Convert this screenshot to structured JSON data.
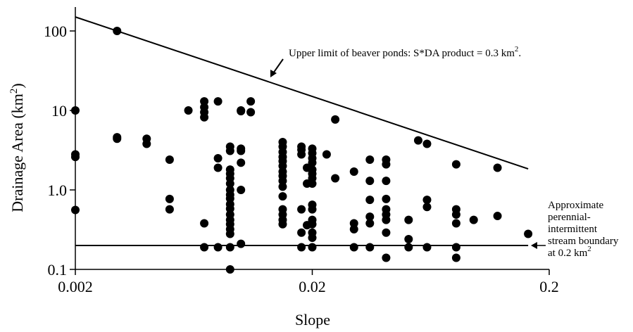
{
  "chart_data": {
    "type": "scatter",
    "log_x": true,
    "log_y": true,
    "x_label": "Slope",
    "y_label": [
      "Drainage Area (km",
      "2",
      ")"
    ],
    "xlim": [
      0.002,
      0.2
    ],
    "xticks": [
      0.002,
      0.02,
      0.2
    ],
    "ylim": [
      0.1,
      200
    ],
    "yticks": [
      0.1,
      {
        "value": 1,
        "label": "1.0"
      },
      10,
      100
    ],
    "series": [
      {
        "color": "#000000",
        "x": [
          0.002,
          0.002,
          0.002,
          0.002,
          0.003,
          0.003,
          0.003,
          0.004,
          0.004,
          0.005,
          0.005,
          0.005,
          0.006,
          0.007,
          0.007,
          0.007,
          0.007,
          0.007,
          0.007,
          0.008,
          0.008,
          0.008,
          0.008,
          0.009,
          0.009,
          0.009,
          0.009,
          0.009,
          0.009,
          0.009,
          0.009,
          0.009,
          0.009,
          0.009,
          0.009,
          0.009,
          0.009,
          0.009,
          0.009,
          0.009,
          0.009,
          0.01,
          0.01,
          0.01,
          0.01,
          0.01,
          0.01,
          0.01,
          0.011,
          0.011,
          0.015,
          0.015,
          0.015,
          0.015,
          0.015,
          0.015,
          0.015,
          0.015,
          0.015,
          0.015,
          0.015,
          0.015,
          0.015,
          0.015,
          0.015,
          0.018,
          0.018,
          0.018,
          0.018,
          0.018,
          0.018,
          0.019,
          0.019,
          0.019,
          0.02,
          0.02,
          0.02,
          0.02,
          0.02,
          0.02,
          0.02,
          0.02,
          0.02,
          0.02,
          0.02,
          0.02,
          0.02,
          0.02,
          0.02,
          0.023,
          0.025,
          0.025,
          0.03,
          0.03,
          0.03,
          0.03,
          0.035,
          0.035,
          0.035,
          0.035,
          0.035,
          0.035,
          0.041,
          0.041,
          0.041,
          0.041,
          0.041,
          0.041,
          0.041,
          0.041,
          0.041,
          0.051,
          0.051,
          0.051,
          0.056,
          0.061,
          0.061,
          0.061,
          0.061,
          0.081,
          0.081,
          0.081,
          0.081,
          0.081,
          0.081,
          0.096,
          0.121,
          0.121,
          0.163
        ],
        "values": [
          10,
          2.8,
          2.6,
          0.56,
          100,
          4.6,
          4.4,
          4.4,
          3.8,
          2.4,
          0.77,
          0.57,
          10,
          13,
          11,
          9.5,
          8.2,
          0.38,
          0.19,
          13,
          2.5,
          1.9,
          0.19,
          3.5,
          3.1,
          1.8,
          1.6,
          1.4,
          1.2,
          1.0,
          0.87,
          0.78,
          0.66,
          0.58,
          0.49,
          0.42,
          0.37,
          0.32,
          0.28,
          0.19,
          0.1,
          10,
          9.8,
          3.3,
          3.1,
          2.2,
          1.0,
          0.21,
          13,
          9.5,
          4.0,
          3.5,
          3.0,
          2.6,
          2.3,
          2.0,
          1.7,
          1.5,
          1.3,
          1.1,
          0.83,
          0.57,
          0.49,
          0.42,
          0.37,
          3.5,
          3.2,
          2.8,
          0.57,
          0.29,
          0.19,
          1.9,
          1.2,
          0.36,
          3.3,
          2.9,
          2.5,
          2.2,
          1.8,
          1.6,
          1.4,
          1.2,
          0.65,
          0.57,
          0.42,
          0.37,
          0.29,
          0.25,
          0.19,
          2.8,
          7.7,
          1.4,
          1.7,
          0.38,
          0.32,
          0.19,
          2.4,
          1.3,
          0.75,
          0.46,
          0.38,
          0.19,
          2.4,
          2.1,
          1.3,
          0.77,
          0.57,
          0.49,
          0.42,
          0.29,
          0.14,
          0.42,
          0.24,
          0.19,
          4.2,
          3.8,
          0.75,
          0.61,
          0.19,
          2.1,
          0.57,
          0.49,
          0.38,
          0.19,
          0.14,
          0.42,
          1.9,
          0.47,
          0.28
        ]
      }
    ],
    "lines": [
      {
        "color": "#000000",
        "x": [
          0.002,
          0.163
        ],
        "values": [
          150,
          1.84
        ]
      },
      {
        "color": "#000000",
        "x": [
          0.002,
          0.163
        ],
        "values": [
          0.2,
          0.2
        ]
      }
    ],
    "annotations": [
      {
        "text": [
          "Upper limit of beaver ponds: S*DA product = 0.3 km",
          "2",
          "."
        ]
      },
      {
        "lines": [
          "Approximate",
          "perennial-",
          "intermittent",
          "stream boundary"
        ],
        "last": [
          "at 0.2 km",
          "2"
        ]
      }
    ]
  }
}
